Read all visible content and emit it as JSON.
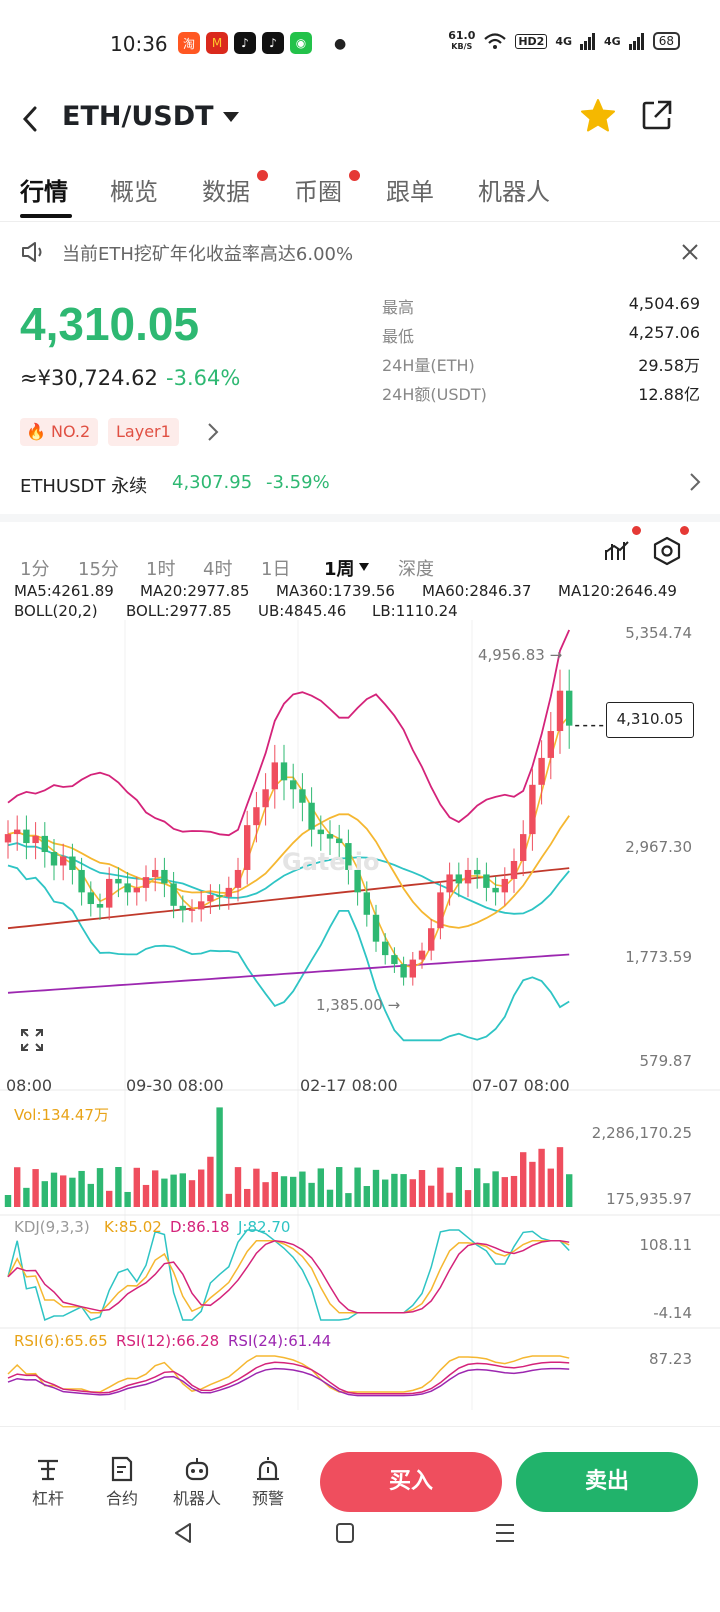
{
  "status": {
    "time": "10:36",
    "speed": "61.0",
    "speed_unit": "KB/S",
    "battery": "68",
    "net1": "4G",
    "net2": "4G",
    "hd": "HD2"
  },
  "header": {
    "title": "ETH/USDT"
  },
  "tabs": [
    {
      "label": "行情",
      "dot": false
    },
    {
      "label": "概览",
      "dot": false
    },
    {
      "label": "数据",
      "dot": true
    },
    {
      "label": "币圈",
      "dot": true
    },
    {
      "label": "跟单",
      "dot": false
    },
    {
      "label": "机器人",
      "dot": false
    }
  ],
  "notice": {
    "text": "当前ETH挖矿年化收益率高达6.00%"
  },
  "ticker": {
    "price": "4,310.05",
    "cny": "≈¥30,724.62",
    "change": "-3.64%",
    "tags": [
      "NO.2",
      "Layer1"
    ],
    "stats": [
      {
        "label": "最高",
        "value": "4,504.69"
      },
      {
        "label": "最低",
        "value": "4,257.06"
      },
      {
        "label": "24H量(ETH)",
        "value": "29.58万"
      },
      {
        "label": "24H额(USDT)",
        "value": "12.88亿"
      }
    ]
  },
  "perpetual": {
    "name": "ETHUSDT 永续",
    "price": "4,307.95",
    "change": "-3.59%"
  },
  "timeframes": [
    "1分",
    "15分",
    "1时",
    "4时",
    "1日",
    "1周",
    "深度"
  ],
  "active_timeframe": "1周",
  "colors": {
    "up": "#2eb872",
    "down": "#ef4e5e",
    "ma5": "#f5b731",
    "ma20": "#d4237a",
    "ma360": "#9c27b0",
    "ma60": "#2ec4c4",
    "ma120": "#c0392b"
  },
  "chart_data": {
    "type": "candlestick",
    "ma_legend": [
      {
        "text": "MA5:4261.89",
        "color": "#e8a317"
      },
      {
        "text": "MA20:2977.85",
        "color": "#d4237a"
      },
      {
        "text": "MA360:1739.56",
        "color": "#9c27b0"
      },
      {
        "text": "MA60:2846.37",
        "color": "#2ec4c4"
      },
      {
        "text": "MA120:2646.49",
        "color": "#c0392b"
      }
    ],
    "boll_legend": [
      {
        "text": "BOLL(20,2)",
        "color": "#e8a317"
      },
      {
        "text": "BOLL:2977.85",
        "color": "#e8a317"
      },
      {
        "text": "UB:4845.46",
        "color": "#d4237a"
      },
      {
        "text": "LB:1110.24",
        "color": "#2ec4c4"
      }
    ],
    "y_ticks": [
      "5,354.74",
      "2,967.30",
      "1,773.59",
      "579.87"
    ],
    "ylim": [
      579.87,
      5354.74
    ],
    "x_ticks": [
      "08:00",
      "09-30 08:00",
      "02-17 08:00",
      "07-07 08:00"
    ],
    "high_label": "4,956.83 →",
    "low_label": "1,385.00 →",
    "last_price": "4,310.05",
    "watermark": "Gate.io",
    "closes": [
      3100,
      3150,
      3000,
      3080,
      2900,
      2750,
      2850,
      2700,
      2450,
      2320,
      2280,
      2600,
      2550,
      2450,
      2500,
      2620,
      2700,
      2550,
      2300,
      2250,
      2260,
      2350,
      2420,
      2400,
      2500,
      2700,
      3200,
      3400,
      3600,
      3900,
      3700,
      3600,
      3450,
      3150,
      3100,
      3050,
      3000,
      2700,
      2450,
      2200,
      1900,
      1750,
      1650,
      1500,
      1700,
      1800,
      2050,
      2450,
      2650,
      2550,
      2700,
      2650,
      2500,
      2450,
      2600,
      2800,
      3100,
      3650,
      3950,
      4250,
      4700,
      4310
    ],
    "volume": {
      "label": "Vol:134.47万",
      "ticks": [
        "2,286,170.25",
        "175,935.97"
      ]
    },
    "kdj": {
      "labels": [
        {
          "text": "KDJ(9,3,3)",
          "color": "#999"
        },
        {
          "text": "K:85.02",
          "color": "#e8a317"
        },
        {
          "text": "D:86.18",
          "color": "#d4237a"
        },
        {
          "text": "J:82.70",
          "color": "#2ec4c4"
        }
      ],
      "ticks": [
        "108.11",
        "-4.14"
      ]
    },
    "rsi": {
      "labels": [
        {
          "text": "RSI(6):65.65",
          "color": "#e8a317"
        },
        {
          "text": "RSI(12):66.28",
          "color": "#d4237a"
        },
        {
          "text": "RSI(24):61.44",
          "color": "#9c27b0"
        }
      ],
      "ticks": [
        "87.23"
      ]
    }
  },
  "bottom_nav": [
    {
      "label": "杠杆",
      "icon": "leverage-icon"
    },
    {
      "label": "合约",
      "icon": "contract-icon"
    },
    {
      "label": "机器人",
      "icon": "robot-icon"
    },
    {
      "label": "预警",
      "icon": "alarm-icon"
    }
  ],
  "actions": {
    "buy": "买入",
    "sell": "卖出"
  }
}
